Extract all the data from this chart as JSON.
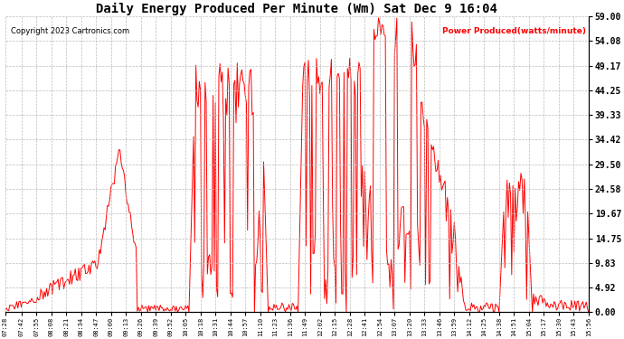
{
  "title": "Daily Energy Produced Per Minute (Wm) Sat Dec 9 16:04",
  "copyright": "Copyright 2023 Cartronics.com",
  "legend_label": "Power Produced(watts/minute)",
  "ylabel_right_ticks": [
    0.0,
    4.92,
    9.83,
    14.75,
    19.67,
    24.58,
    29.5,
    34.42,
    39.33,
    44.25,
    49.17,
    54.08,
    59.0
  ],
  "ymax": 59.0,
  "ymin": 0.0,
  "line_color": "red",
  "background_color": "#ffffff",
  "grid_color": "#bbbbbb",
  "title_color": "black",
  "copyright_color": "black",
  "legend_color": "red",
  "x_tick_labels": [
    "07:28",
    "07:42",
    "07:55",
    "08:08",
    "08:21",
    "08:34",
    "08:47",
    "09:00",
    "09:13",
    "09:26",
    "09:39",
    "09:52",
    "10:05",
    "10:18",
    "10:31",
    "10:44",
    "10:57",
    "11:10",
    "11:23",
    "11:36",
    "11:49",
    "12:02",
    "12:15",
    "12:28",
    "12:41",
    "12:54",
    "13:07",
    "13:20",
    "13:33",
    "13:46",
    "13:59",
    "14:12",
    "14:25",
    "14:38",
    "14:51",
    "15:04",
    "15:17",
    "15:30",
    "15:43",
    "15:56"
  ]
}
